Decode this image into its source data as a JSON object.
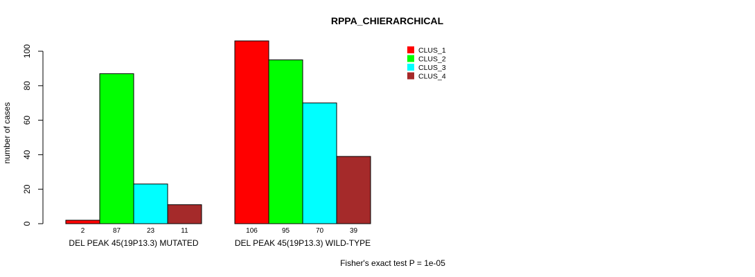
{
  "chart_data": {
    "type": "bar",
    "title": "RPPA_CHIERARCHICAL",
    "ylabel": "number of cases",
    "xlabel": "",
    "ylim": [
      0,
      100
    ],
    "yticks": [
      0,
      20,
      40,
      60,
      80,
      100
    ],
    "groups": [
      "DEL PEAK 45(19P13.3) MUTATED",
      "DEL PEAK 45(19P13.3) WILD-TYPE"
    ],
    "series": [
      {
        "name": "CLUS_1",
        "color": "#ff0000",
        "values": [
          2,
          106
        ]
      },
      {
        "name": "CLUS_2",
        "color": "#00ff00",
        "values": [
          87,
          95
        ]
      },
      {
        "name": "CLUS_3",
        "color": "#00ffff",
        "values": [
          23,
          70
        ]
      },
      {
        "name": "CLUS_4",
        "color": "#a52a2a",
        "values": [
          11,
          39
        ]
      }
    ],
    "legend_position": "top-right",
    "footnote": "Fisher's exact test P = 1e-05"
  }
}
